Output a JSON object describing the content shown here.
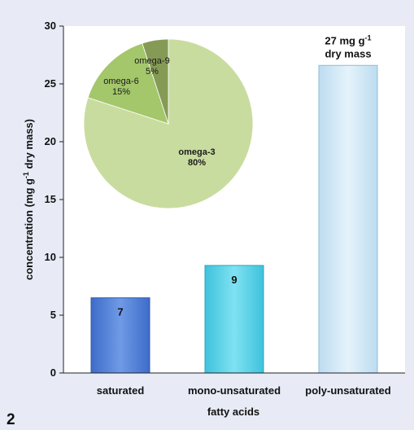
{
  "panel_label": "2",
  "chart_data": [
    {
      "type": "bar",
      "categories": [
        "saturated",
        "mono-unsaturated",
        "poly-unsaturated"
      ],
      "values": [
        6.5,
        9.3,
        26.6
      ],
      "data_labels": [
        "7",
        "9",
        "27 mg g-1\ndry mass"
      ],
      "colors": [
        "#4f7fd8",
        "#56d2e8",
        "#cfe7f6"
      ],
      "xlabel": "fatty acids",
      "ylabel": "concentration (mg g-1 dry mass)",
      "ylim": [
        0,
        30
      ],
      "yticks": [
        0,
        5,
        10,
        15,
        20,
        25,
        30
      ],
      "grid": false
    },
    {
      "type": "pie",
      "labels": [
        "omega-3",
        "omega-6",
        "omega-9"
      ],
      "values": [
        80,
        15,
        5
      ],
      "value_labels": [
        "80%",
        "15%",
        "5%"
      ],
      "colors": [
        "#c9dc9f",
        "#a3c76a",
        "#859b55"
      ]
    }
  ]
}
